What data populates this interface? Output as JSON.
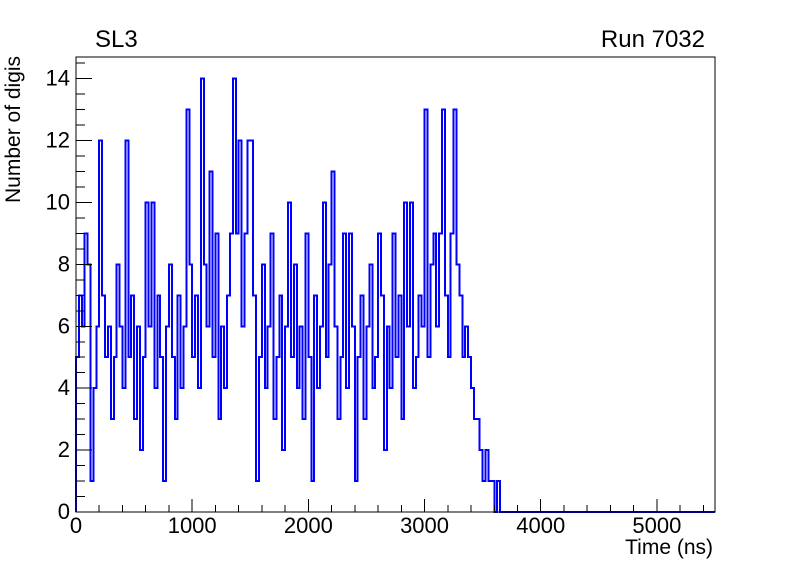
{
  "page": {
    "background": "#ffffff"
  },
  "chart_data": {
    "type": "line",
    "style": "step-histogram",
    "title": "SL3",
    "run_label": "Run 7032",
    "xlabel": "Time (ns)",
    "ylabel": "Number of digis",
    "xlim": [
      0,
      5500
    ],
    "ylim": [
      0,
      14.7
    ],
    "bin_width": 25,
    "x_unit": "ns",
    "line_color": "#0000ff",
    "axis_color": "#000000",
    "grid": false,
    "legend": false,
    "x_ticks": {
      "values": [
        0,
        1000,
        2000,
        3000,
        4000,
        5000
      ],
      "labels": [
        "0",
        "1000",
        "2000",
        "3000",
        "4000",
        "5000"
      ],
      "minor_step": 200
    },
    "y_ticks": {
      "values": [
        0,
        2,
        4,
        6,
        8,
        10,
        12,
        14
      ],
      "labels": [
        "0",
        "2",
        "4",
        "6",
        "8",
        "10",
        "12",
        "14"
      ],
      "minor_step": 0.5
    },
    "values": [
      5,
      7,
      6,
      9,
      8,
      1,
      4,
      6,
      12,
      7,
      5,
      6,
      3,
      5,
      8,
      6,
      4,
      12,
      5,
      7,
      3,
      6,
      2,
      5,
      10,
      6,
      10,
      4,
      7,
      5,
      1,
      6,
      8,
      5,
      3,
      7,
      4,
      6,
      13,
      8,
      5,
      7,
      4,
      14,
      8,
      6,
      11,
      5,
      9,
      3,
      6,
      4,
      7,
      9,
      14,
      9,
      12,
      6,
      9,
      12,
      12,
      7,
      1,
      5,
      8,
      4,
      6,
      9,
      3,
      5,
      7,
      2,
      6,
      10,
      5,
      8,
      4,
      6,
      3,
      9,
      5,
      1,
      7,
      4,
      6,
      10,
      5,
      8,
      11,
      6,
      3,
      5,
      9,
      4,
      9,
      6,
      1,
      5,
      7,
      3,
      6,
      8,
      4,
      5,
      9,
      7,
      2,
      6,
      4,
      9,
      5,
      7,
      3,
      10,
      6,
      10,
      4,
      5,
      7,
      6,
      13,
      5,
      8,
      9,
      6,
      9,
      13,
      7,
      5,
      9,
      13,
      8,
      7,
      5,
      6,
      5,
      4,
      3,
      3,
      2,
      1,
      2,
      1,
      1,
      0,
      1,
      0,
      0,
      0,
      0,
      0,
      0,
      0,
      0,
      0,
      0,
      0,
      0,
      0,
      0,
      0,
      0,
      0,
      0,
      0,
      0,
      0,
      0,
      0,
      0,
      0,
      0,
      0,
      0,
      0,
      0,
      0,
      0,
      0,
      0,
      0,
      0,
      0,
      0,
      0,
      0,
      0,
      0,
      0,
      0,
      0,
      0,
      0,
      0,
      0,
      0,
      0,
      0,
      0,
      0,
      0,
      0,
      0,
      0,
      0,
      0,
      0,
      0,
      0,
      0,
      0,
      0,
      0,
      0,
      0,
      0,
      0,
      0,
      0,
      0
    ]
  }
}
